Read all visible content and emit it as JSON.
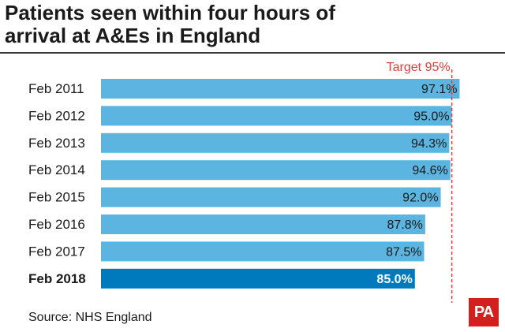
{
  "title": {
    "line1": "Patients seen within four hours of",
    "line2": "arrival at A&Es in England"
  },
  "source": "Source: NHS England",
  "logo_text": "PA",
  "colors": {
    "bar": "#5bb5e0",
    "bar_highlight": "#0079bd",
    "target_line": "#d9413a",
    "text": "#1a1a1a"
  },
  "chart_data": {
    "type": "bar",
    "orientation": "horizontal",
    "categories": [
      "Feb 2011",
      "Feb 2012",
      "Feb 2013",
      "Feb 2014",
      "Feb 2015",
      "Feb 2016",
      "Feb 2017",
      "Feb 2018"
    ],
    "values": [
      97.1,
      95.0,
      94.3,
      94.6,
      92.0,
      87.8,
      87.5,
      85.0
    ],
    "value_labels": [
      "97.1%",
      "95.0%",
      "94.3%",
      "94.6%",
      "92.0%",
      "87.8%",
      "87.5%",
      "85.0%"
    ],
    "highlight_index": 7,
    "target": {
      "value": 95,
      "label": "Target 95%"
    }
  }
}
